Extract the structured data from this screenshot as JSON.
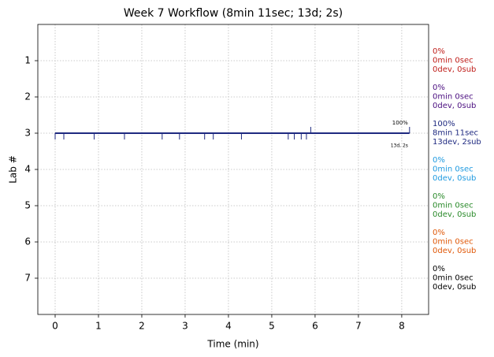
{
  "chart_data": {
    "type": "timeline",
    "title": "Week 7 Workflow (8min 11sec; 13d; 2s)",
    "x_label": "Time (min)",
    "y_label": "Lab #",
    "xlim": [
      -0.4,
      8.62
    ],
    "xticks": [
      0,
      1,
      2,
      3,
      4,
      5,
      6,
      7,
      8
    ],
    "ylim": [
      8,
      0
    ],
    "yticks": [
      1,
      2,
      3,
      4,
      5,
      6,
      7
    ],
    "grid": true,
    "events": [
      {
        "lab": 3,
        "color": "#1f2a80",
        "start": 0,
        "end": 8.18,
        "dev": [
          0,
          0.2,
          0.9,
          1.6,
          2.47,
          2.87,
          3.45,
          3.65,
          4.3,
          5.38,
          5.52,
          5.68,
          5.8
        ],
        "sub": [
          5.9,
          8.18
        ],
        "percent_label": "100%",
        "count_label": "13d, 2s"
      }
    ],
    "annotations": [
      {
        "lab": 1,
        "color": "#c0201c",
        "lines": [
          "0%",
          "0min 0sec",
          "0dev, 0sub"
        ]
      },
      {
        "lab": 2,
        "color": "#4b0f80",
        "lines": [
          "0%",
          "0min 0sec",
          "0dev, 0sub"
        ]
      },
      {
        "lab": 3,
        "color": "#1f2a80",
        "lines": [
          "100%",
          "8min 11sec",
          "13dev, 2sub"
        ]
      },
      {
        "lab": 4,
        "color": "#1f9ae0",
        "lines": [
          "0%",
          "0min 0sec",
          "0dev, 0sub"
        ]
      },
      {
        "lab": 5,
        "color": "#2a8a2a",
        "lines": [
          "0%",
          "0min 0sec",
          "0dev, 0sub"
        ]
      },
      {
        "lab": 6,
        "color": "#e0590a",
        "lines": [
          "0%",
          "0min 0sec",
          "0dev, 0sub"
        ]
      },
      {
        "lab": 7,
        "color": "#000000",
        "lines": [
          "0%",
          "0min 0sec",
          "0dev, 0sub"
        ]
      }
    ]
  }
}
